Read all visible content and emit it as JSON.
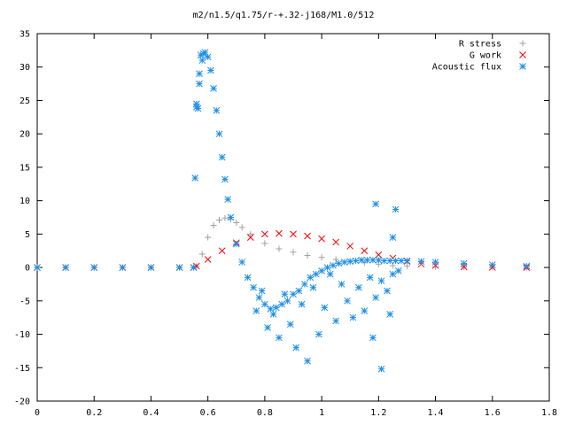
{
  "chart_data": {
    "type": "scatter",
    "title": "m2/n1.5/q1.75/r-+.32-j168/M1.0/512",
    "xlabel": "",
    "ylabel": "",
    "xlim": [
      0,
      1.8
    ],
    "ylim": [
      -20,
      35
    ],
    "xticks": [
      0,
      0.2,
      0.4,
      0.6,
      0.8,
      1,
      1.2,
      1.4,
      1.6,
      1.8
    ],
    "xtick_labels": [
      "0",
      "0.2",
      "0.4",
      "0.6",
      "0.8",
      "1",
      "1.2",
      "1.4",
      "1.6",
      "1.8"
    ],
    "yticks": [
      -20,
      -15,
      -10,
      -5,
      0,
      5,
      10,
      15,
      20,
      25,
      30,
      35
    ],
    "ytick_labels": [
      "-20",
      "-15",
      "-10",
      "-5",
      "0",
      "5",
      "10",
      "15",
      "20",
      "25",
      "30",
      "35"
    ],
    "grid": false,
    "legend_position": "top-right",
    "series": [
      {
        "name": "R stress",
        "marker": "+",
        "color": "#a0a0a0",
        "x": [
          0,
          0.1,
          0.2,
          0.3,
          0.4,
          0.5,
          0.55,
          0.56,
          0.58,
          0.6,
          0.62,
          0.64,
          0.66,
          0.68,
          0.7,
          0.72,
          0.75,
          0.8,
          0.85,
          0.9,
          0.95,
          1.0,
          1.05,
          1.1,
          1.15,
          1.2,
          1.25,
          1.3,
          1.4,
          1.5,
          1.6,
          1.72
        ],
        "y": [
          0,
          0,
          0,
          0,
          0,
          0,
          0,
          0.2,
          2.0,
          4.5,
          6.3,
          7.1,
          7.4,
          7.2,
          6.7,
          6.0,
          5.0,
          3.6,
          2.8,
          2.3,
          1.8,
          1.5,
          1.2,
          0.9,
          0.7,
          0.5,
          0.3,
          0.2,
          0.1,
          0.05,
          0.02,
          0
        ]
      },
      {
        "name": "G work",
        "marker": "x",
        "color": "#ff0000",
        "x": [
          0,
          0.1,
          0.2,
          0.3,
          0.4,
          0.5,
          0.55,
          0.56,
          0.6,
          0.65,
          0.7,
          0.75,
          0.8,
          0.85,
          0.9,
          0.95,
          1.0,
          1.05,
          1.1,
          1.15,
          1.2,
          1.25,
          1.3,
          1.35,
          1.4,
          1.5,
          1.6,
          1.72
        ],
        "y": [
          0,
          0,
          0,
          0,
          0,
          0,
          0,
          0.2,
          1.2,
          2.5,
          3.7,
          4.5,
          5.0,
          5.1,
          5.0,
          4.7,
          4.3,
          3.8,
          3.2,
          2.5,
          1.9,
          1.4,
          0.9,
          0.5,
          0.3,
          0.1,
          0.03,
          0
        ]
      },
      {
        "name": "Acoustic flux",
        "marker": "*",
        "color": "#1e90e6",
        "x": [
          0,
          0.1,
          0.2,
          0.3,
          0.4,
          0.5,
          0.55,
          0.555,
          0.56,
          0.57,
          0.58,
          0.585,
          0.59,
          0.6,
          0.61,
          0.62,
          0.63,
          0.64,
          0.65,
          0.66,
          0.67,
          0.68,
          0.7,
          0.72,
          0.74,
          0.76,
          0.78,
          0.8,
          0.82,
          0.84,
          0.86,
          0.88,
          0.9,
          0.92,
          0.94,
          0.96,
          0.98,
          1.0,
          1.02,
          1.04,
          1.06,
          1.08,
          1.1,
          1.12,
          1.14,
          1.16,
          1.18,
          1.2,
          1.22,
          1.24,
          1.26,
          1.28,
          1.3,
          1.35,
          1.4,
          1.5,
          1.6,
          1.72,
          0.56,
          0.565,
          0.57,
          0.575,
          0.77,
          0.79,
          0.81,
          0.83,
          0.85,
          0.87,
          0.89,
          0.91,
          0.93,
          0.95,
          0.97,
          0.99,
          1.01,
          1.03,
          1.05,
          1.07,
          1.09,
          1.11,
          1.13,
          1.15,
          1.17,
          1.19,
          1.21,
          1.23,
          1.25,
          1.27,
          1.19,
          1.26,
          1.25,
          1.18,
          1.24,
          1.21
        ],
        "y": [
          0,
          0,
          0,
          0,
          0,
          0,
          0,
          13.4,
          24.0,
          27.5,
          31.0,
          32.0,
          32.2,
          31.5,
          29.5,
          26.8,
          23.5,
          20.0,
          16.5,
          13.2,
          10.2,
          7.5,
          3.5,
          0.8,
          -1.5,
          -3.0,
          -4.5,
          -5.5,
          -6.2,
          -6.0,
          -5.5,
          -5.0,
          -4.0,
          -3.5,
          -2.5,
          -1.5,
          -1.0,
          -0.5,
          0.0,
          0.3,
          0.6,
          0.8,
          0.9,
          1.0,
          1.1,
          1.1,
          1.1,
          1.1,
          1.0,
          1.0,
          1.0,
          1.0,
          1.0,
          0.9,
          0.8,
          0.6,
          0.4,
          0.2,
          24.5,
          23.8,
          29.0,
          31.8,
          -6.5,
          -3.5,
          -9.0,
          -7.0,
          -10.5,
          -4.0,
          -8.5,
          -12.0,
          -5.5,
          -14.0,
          -3.0,
          -10.0,
          -6.0,
          -1.0,
          -8.0,
          -2.5,
          -5.0,
          -7.5,
          -3.0,
          -6.5,
          -1.5,
          -4.5,
          -2.0,
          -3.5,
          -1.0,
          -0.5,
          9.5,
          8.7,
          4.5,
          -10.5,
          -7.0,
          -15.2
        ]
      }
    ]
  }
}
